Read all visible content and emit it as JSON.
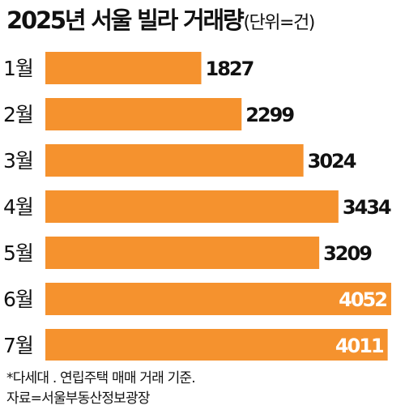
{
  "title": "2025년 서울 빌라 거래량",
  "unit": "(단위=건)",
  "chart_data": {
    "type": "bar",
    "orientation": "horizontal",
    "categories": [
      "1월",
      "2월",
      "3월",
      "4월",
      "5월",
      "6월",
      "7월"
    ],
    "values": [
      1827,
      2299,
      3024,
      3434,
      3209,
      4052,
      4011
    ],
    "xlim": [
      0,
      4100
    ],
    "grid": false,
    "bar_color": "#F5922E"
  },
  "footnote": {
    "line1": "*다세대 . 연립주택 매매 거래 기준.",
    "line2": "자료=서울부동산정보광장"
  },
  "colors": {
    "bar": "#F5922E",
    "text": "#111111",
    "inside_label": "#ffffff"
  }
}
